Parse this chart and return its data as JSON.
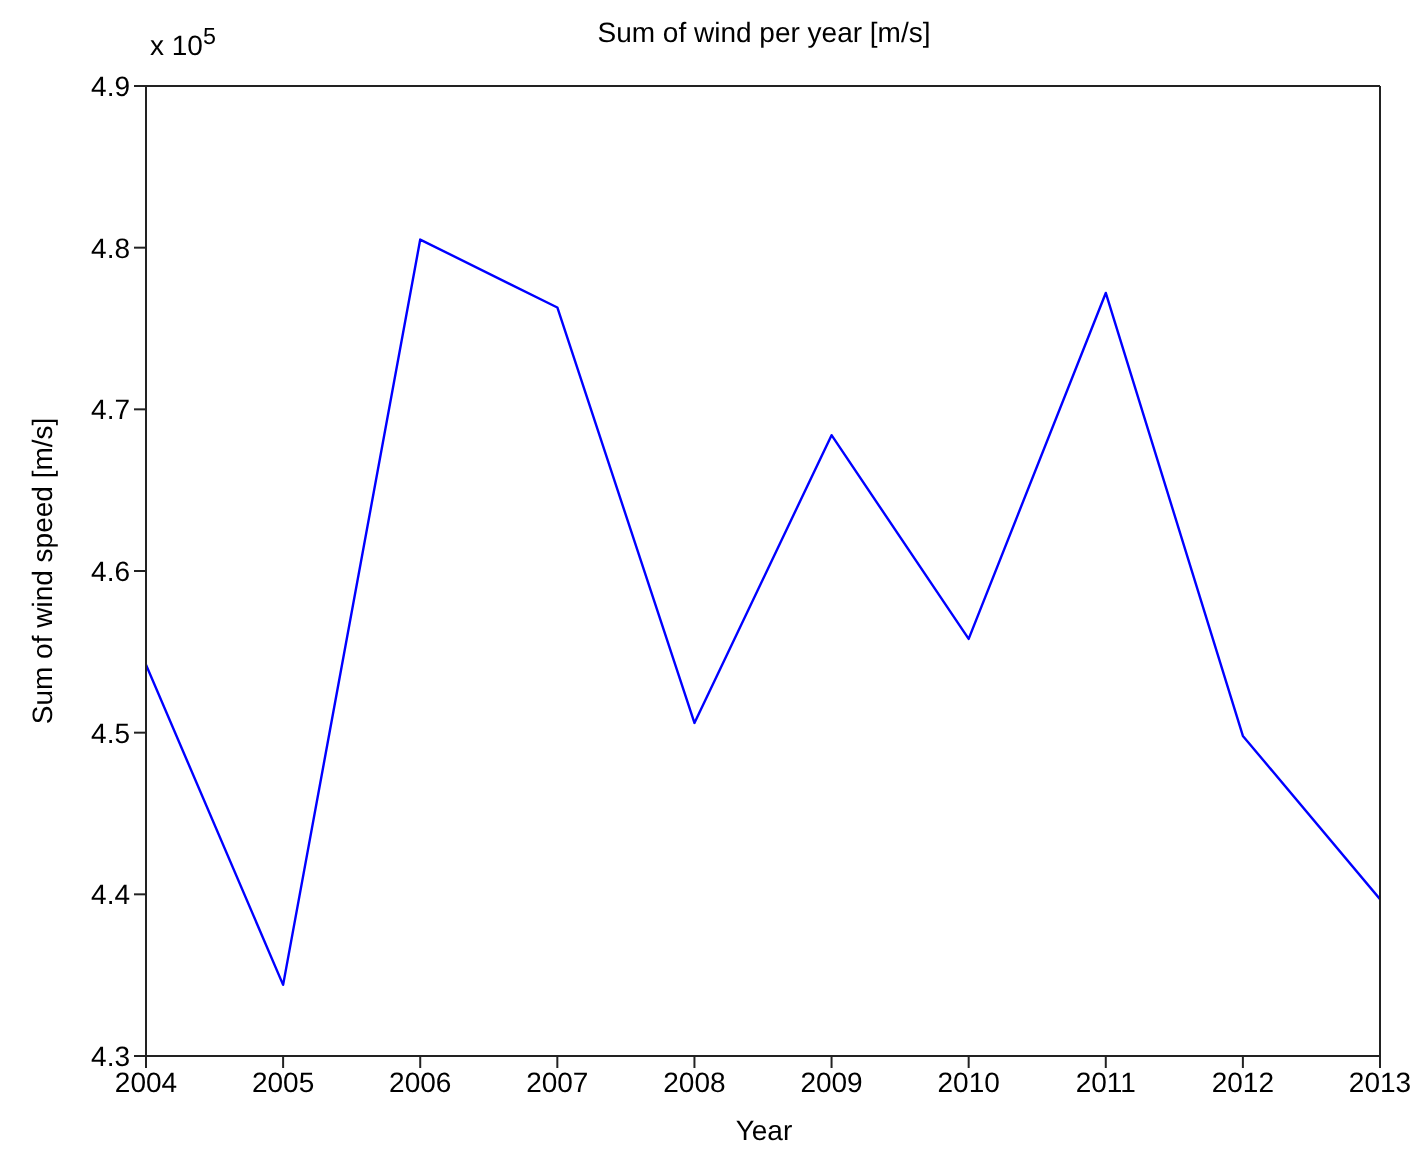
{
  "chart_data": {
    "type": "line",
    "title": "Sum of wind per year [m/s]",
    "xlabel": "Year",
    "ylabel": "Sum of wind speed [m/s]",
    "annotations": [
      "x 10$^{5}$"
    ],
    "x": [
      2004,
      2005,
      2006,
      2007,
      2008,
      2009,
      2010,
      2011,
      2012,
      2013
    ],
    "series": [
      {
        "color": "#0000ff",
        "values": [
          4.542,
          4.344,
          4.805,
          4.763,
          4.506,
          4.684,
          4.558,
          4.772,
          4.498,
          4.397
        ]
      }
    ],
    "xlim": [
      2004,
      2013
    ],
    "xticks": [
      2004,
      2005,
      2006,
      2007,
      2008,
      2009,
      2010,
      2011,
      2012,
      2013
    ],
    "ylim": [
      4.3,
      4.9
    ],
    "yticks": [
      4.3,
      4.4,
      4.5,
      4.6,
      4.7,
      4.8,
      4.9
    ],
    "marker": "none",
    "line_style": "solid"
  }
}
